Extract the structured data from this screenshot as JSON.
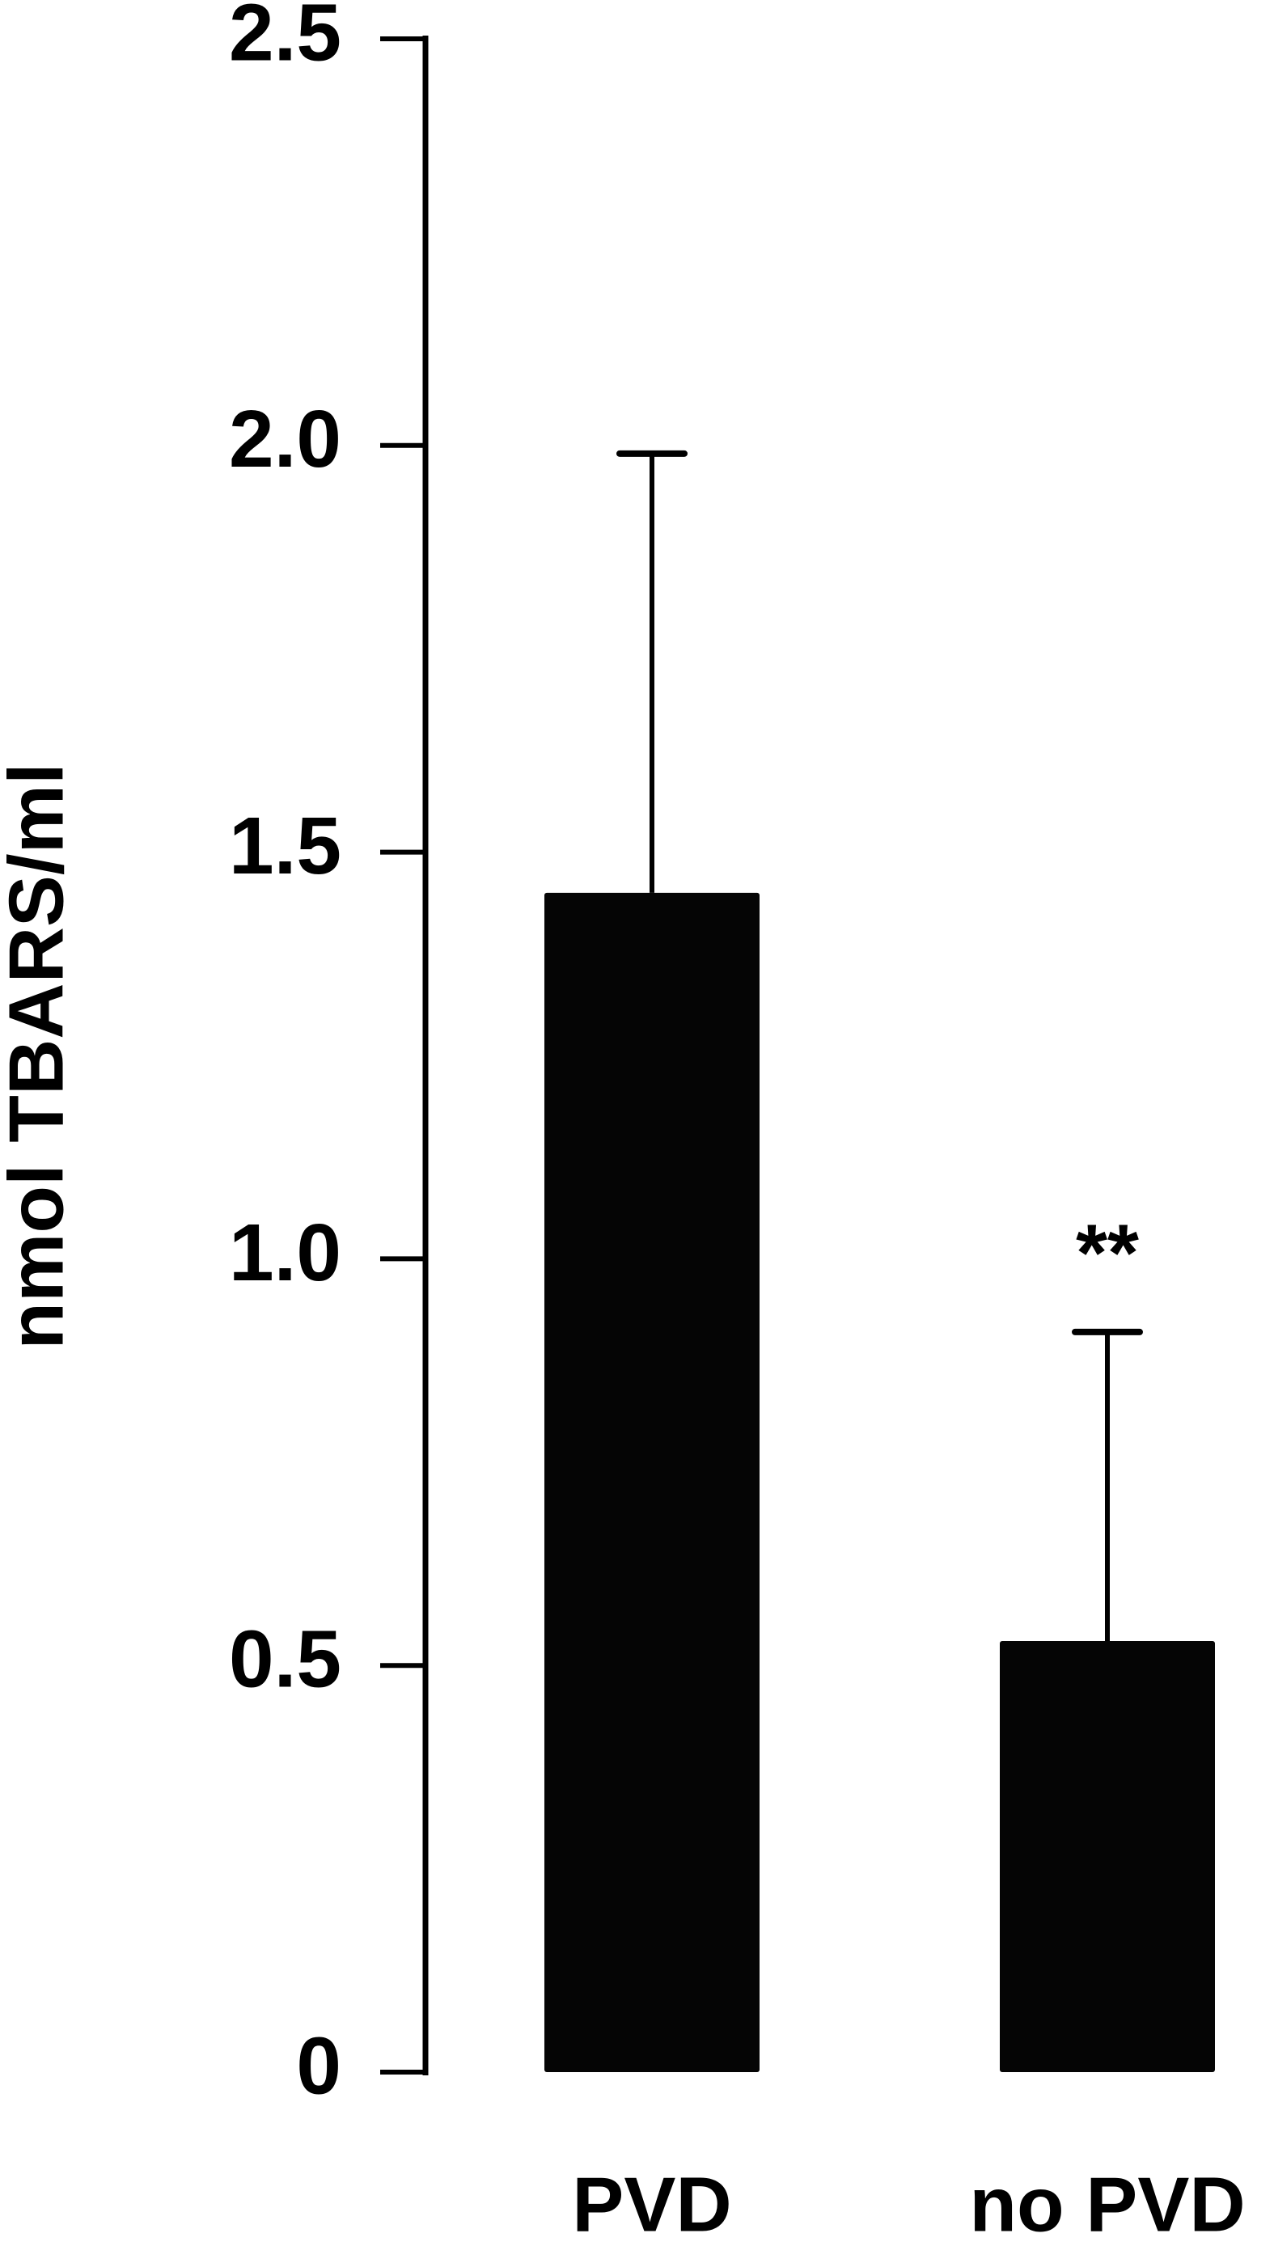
{
  "chart_data": {
    "type": "bar",
    "y_label": "nmol TBARS/ml",
    "categories": [
      "PVD",
      "no PVD"
    ],
    "values": [
      1.45,
      0.53
    ],
    "errors": [
      0.54,
      0.38
    ],
    "annotation": "**",
    "color": "#050505",
    "ylim": [
      0,
      2.5
    ],
    "yticks": [
      0,
      0.5,
      {
        "value": 1,
        "label": "1.0"
      },
      1.5,
      {
        "value": 2,
        "label": "2.0"
      },
      2.5
    ],
    "grid": false
  }
}
